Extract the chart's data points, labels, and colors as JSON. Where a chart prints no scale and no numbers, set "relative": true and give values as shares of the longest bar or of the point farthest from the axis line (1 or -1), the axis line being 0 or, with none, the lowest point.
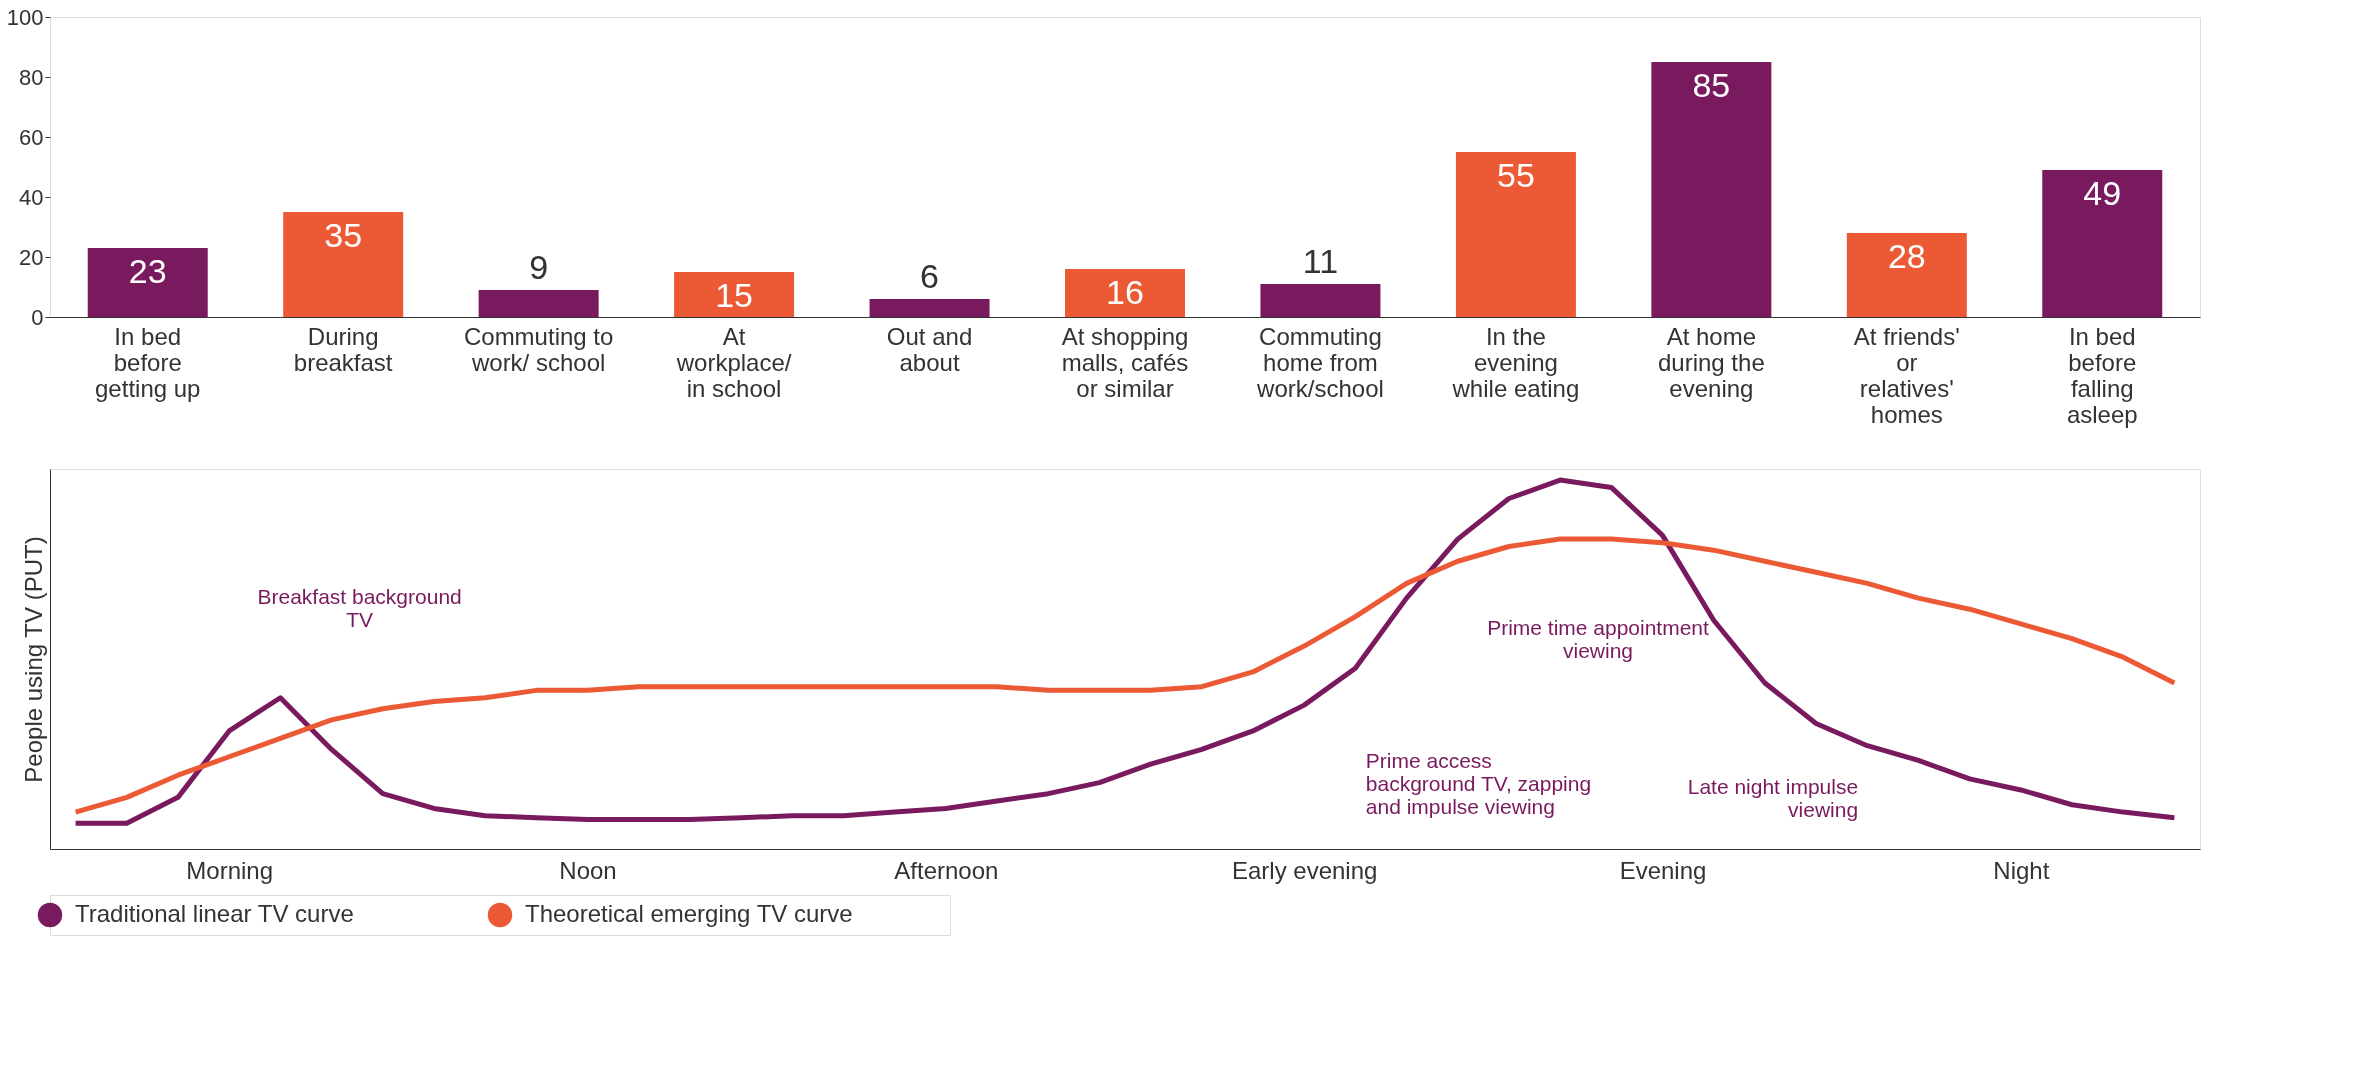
{
  "chart_data": [
    {
      "type": "bar",
      "categories": [
        "In bed before getting up",
        "During breakfast",
        "Commuting to work/ school",
        "At workplace/ in school",
        "Out and about",
        "At shopping malls, cafés or similar",
        "Commuting home from work/school",
        "In the evening while eating",
        "At home during the evening",
        "At friends' or relatives' homes",
        "In bed before falling asleep"
      ],
      "values": [
        23,
        35,
        9,
        15,
        6,
        16,
        11,
        55,
        85,
        28,
        49
      ],
      "colors": [
        "#7a1a5e",
        "#ec5a35",
        "#7a1a5e",
        "#ec5a35",
        "#7a1a5e",
        "#ec5a35",
        "#7a1a5e",
        "#ec5a35",
        "#7a1a5e",
        "#ec5a35",
        "#7a1a5e"
      ],
      "ylim": [
        0,
        100
      ],
      "yticks": [
        0,
        20,
        40,
        60,
        80,
        100
      ],
      "data_labels": true,
      "grid": false
    },
    {
      "type": "line",
      "relative": true,
      "ylabel": "People using TV (PUT)",
      "legend": "bottom left",
      "grid": false,
      "line_style": "solid",
      "categories": [
        null,
        null,
        null,
        "Morning",
        null,
        null,
        null,
        null,
        null,
        null,
        "Noon",
        null,
        null,
        null,
        null,
        null,
        null,
        "Afternoon",
        null,
        null,
        null,
        null,
        null,
        null,
        "Early evening",
        null,
        null,
        null,
        null,
        null,
        null,
        "Evening",
        null,
        null,
        null,
        null,
        null,
        null,
        "Night",
        null,
        null,
        null
      ],
      "series": [
        {
          "name": "Traditional linear TV curve",
          "color": "#7a1a5e",
          "values": [
            0.07,
            0.07,
            0.14,
            0.32,
            0.41,
            0.27,
            0.15,
            0.11,
            0.09,
            0.085,
            0.08,
            0.08,
            0.08,
            0.085,
            0.09,
            0.09,
            0.1,
            0.11,
            0.13,
            0.15,
            0.18,
            0.23,
            0.27,
            0.32,
            0.39,
            0.49,
            0.68,
            0.84,
            0.95,
            1.0,
            0.98,
            0.85,
            0.62,
            0.45,
            0.34,
            0.28,
            0.24,
            0.19,
            0.16,
            0.12,
            0.1,
            0.085
          ]
        },
        {
          "name": "Theoretical emerging TV curve",
          "color": "#ec5a35",
          "values": [
            0.1,
            0.14,
            0.2,
            0.25,
            0.3,
            0.35,
            0.38,
            0.4,
            0.41,
            0.43,
            0.43,
            0.44,
            0.44,
            0.44,
            0.44,
            0.44,
            0.44,
            0.44,
            0.44,
            0.43,
            0.43,
            0.43,
            0.44,
            0.48,
            0.55,
            0.63,
            0.72,
            0.78,
            0.82,
            0.84,
            0.84,
            0.83,
            0.81,
            0.78,
            0.75,
            0.72,
            0.68,
            0.65,
            0.61,
            0.57,
            0.52,
            0.45
          ]
        }
      ],
      "annotations": [
        "Breakfast background TV",
        "Prime time appointment viewing",
        "Prime access background TV, zapping and impulse viewing",
        "Late night impulse viewing"
      ]
    }
  ]
}
